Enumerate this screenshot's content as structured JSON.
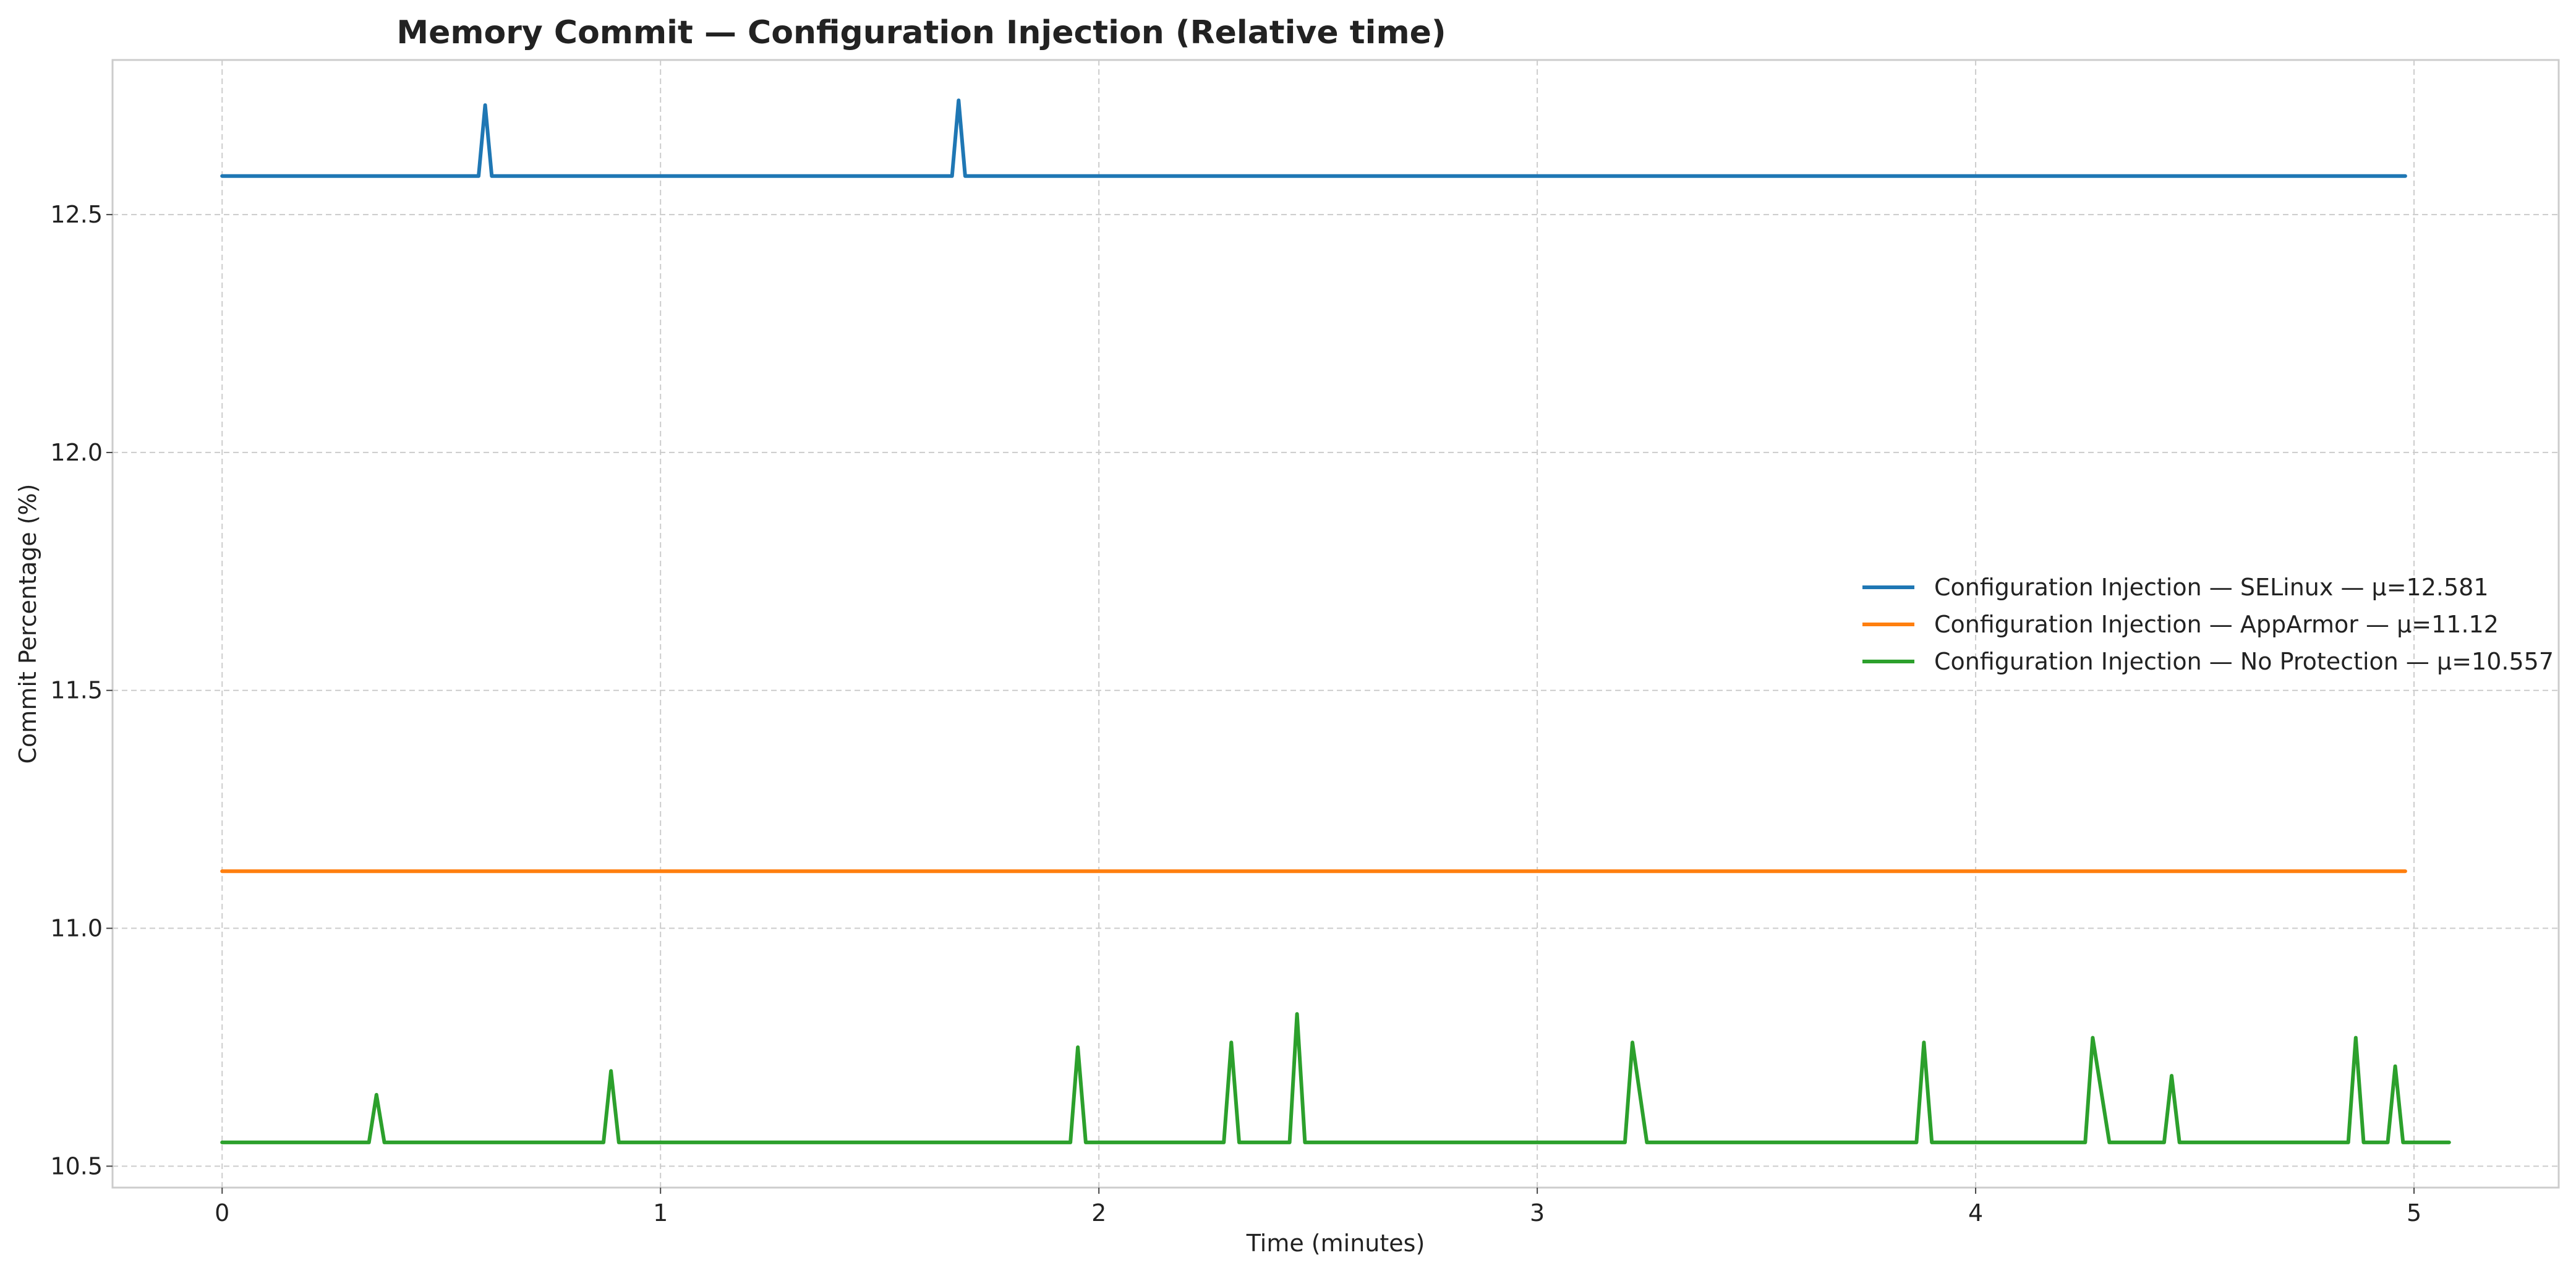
{
  "chart_data": {
    "type": "line",
    "title": "Memory Commit — Configuration Injection (Relative time)",
    "xlabel": "Time (minutes)",
    "ylabel": "Commit Percentage (%)",
    "xlim": [
      -0.25,
      5.33
    ],
    "ylim": [
      10.455,
      12.825
    ],
    "xticks": [
      0,
      1,
      2,
      3,
      4,
      5
    ],
    "xtick_labels": [
      "0",
      "1",
      "2",
      "3",
      "4",
      "5"
    ],
    "yticks": [
      10.5,
      11.0,
      11.5,
      12.0,
      12.5
    ],
    "ytick_labels": [
      "10.5",
      "11.0",
      "11.5",
      "12.0",
      "12.5"
    ],
    "grid": true,
    "legend_position": "center-right",
    "series": [
      {
        "name": "Configuration Injection — SELinux — μ=12.581",
        "color": "#1f77b4",
        "x": [
          0,
          0.585,
          0.6,
          0.615,
          1.665,
          1.68,
          1.695,
          4.98
        ],
        "y": [
          12.581,
          12.581,
          12.73,
          12.581,
          12.581,
          12.74,
          12.581,
          12.581
        ]
      },
      {
        "name": "Configuration Injection — AppArmor — μ=11.12",
        "color": "#ff7f0e",
        "x": [
          0,
          4.98
        ],
        "y": [
          11.12,
          11.12
        ]
      },
      {
        "name": "Configuration Injection — No Protection — μ=10.557",
        "color": "#2ca02c",
        "x": [
          0,
          0.335,
          0.352,
          0.37,
          0.87,
          0.887,
          0.905,
          1.935,
          1.952,
          1.97,
          2.285,
          2.302,
          2.32,
          2.435,
          2.452,
          2.47,
          3.2,
          3.217,
          3.25,
          3.865,
          3.882,
          3.9,
          4.25,
          4.267,
          4.305,
          4.43,
          4.447,
          4.465,
          4.85,
          4.867,
          4.885,
          4.94,
          4.957,
          4.975,
          5.08
        ],
        "y": [
          10.55,
          10.55,
          10.65,
          10.55,
          10.55,
          10.7,
          10.55,
          10.55,
          10.75,
          10.55,
          10.55,
          10.76,
          10.55,
          10.55,
          10.82,
          10.55,
          10.55,
          10.76,
          10.55,
          10.55,
          10.76,
          10.55,
          10.55,
          10.77,
          10.55,
          10.55,
          10.69,
          10.55,
          10.55,
          10.77,
          10.55,
          10.55,
          10.71,
          10.55,
          10.55
        ]
      }
    ]
  }
}
